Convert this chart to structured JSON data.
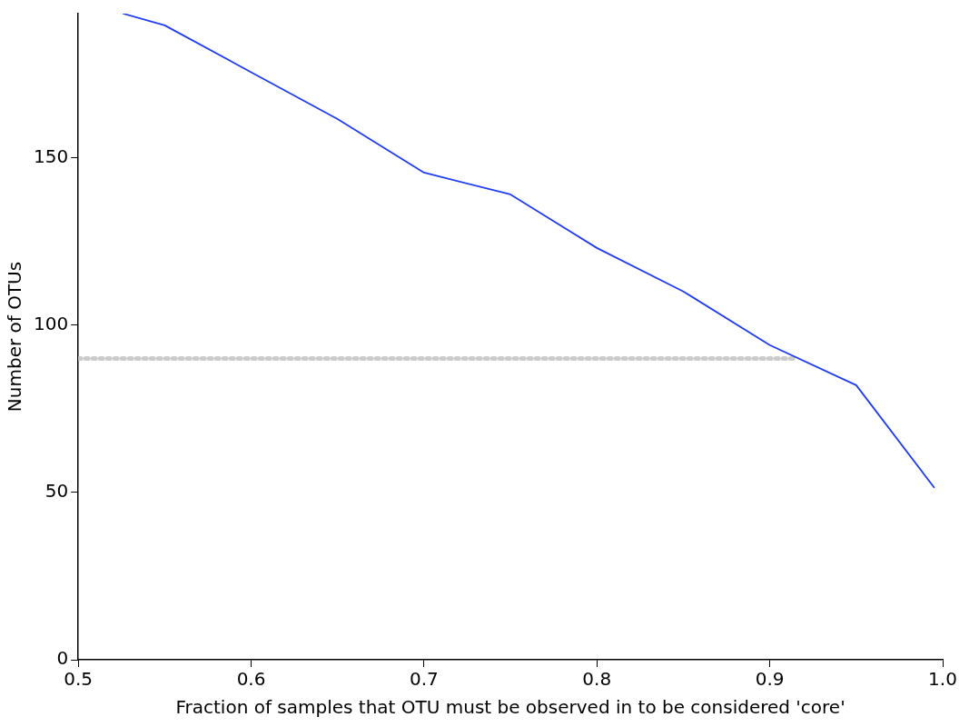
{
  "chart_data": {
    "type": "line",
    "xlabel": "Fraction of samples that OTU must be observed in to be considered 'core'",
    "ylabel": "Number of OTUs",
    "series": [
      {
        "color": "#1f3cf5",
        "x": [
          0.526,
          0.55,
          0.6,
          0.65,
          0.7,
          0.75,
          0.8,
          0.85,
          0.9,
          0.95,
          0.995
        ],
        "values": [
          193,
          189.5,
          175.5,
          161.5,
          145.5,
          139,
          123,
          110,
          94,
          82,
          51.5
        ],
        "line_style": "solid"
      },
      {
        "color": "#cccccc",
        "x": [
          0.5,
          0.915
        ],
        "values": [
          90,
          90
        ],
        "line_style": "dotted"
      }
    ],
    "xlim": [
      0.5,
      1.0
    ],
    "xticks": [
      {
        "value": 0.5,
        "label": "0.5"
      },
      0.6,
      0.7,
      0.8,
      0.9,
      {
        "value": 1.0,
        "label": "1.0"
      }
    ],
    "ylim": [
      0,
      193
    ],
    "yticks": [
      0,
      50,
      100,
      150
    ],
    "grid": false,
    "legend": false,
    "marker": "none"
  }
}
